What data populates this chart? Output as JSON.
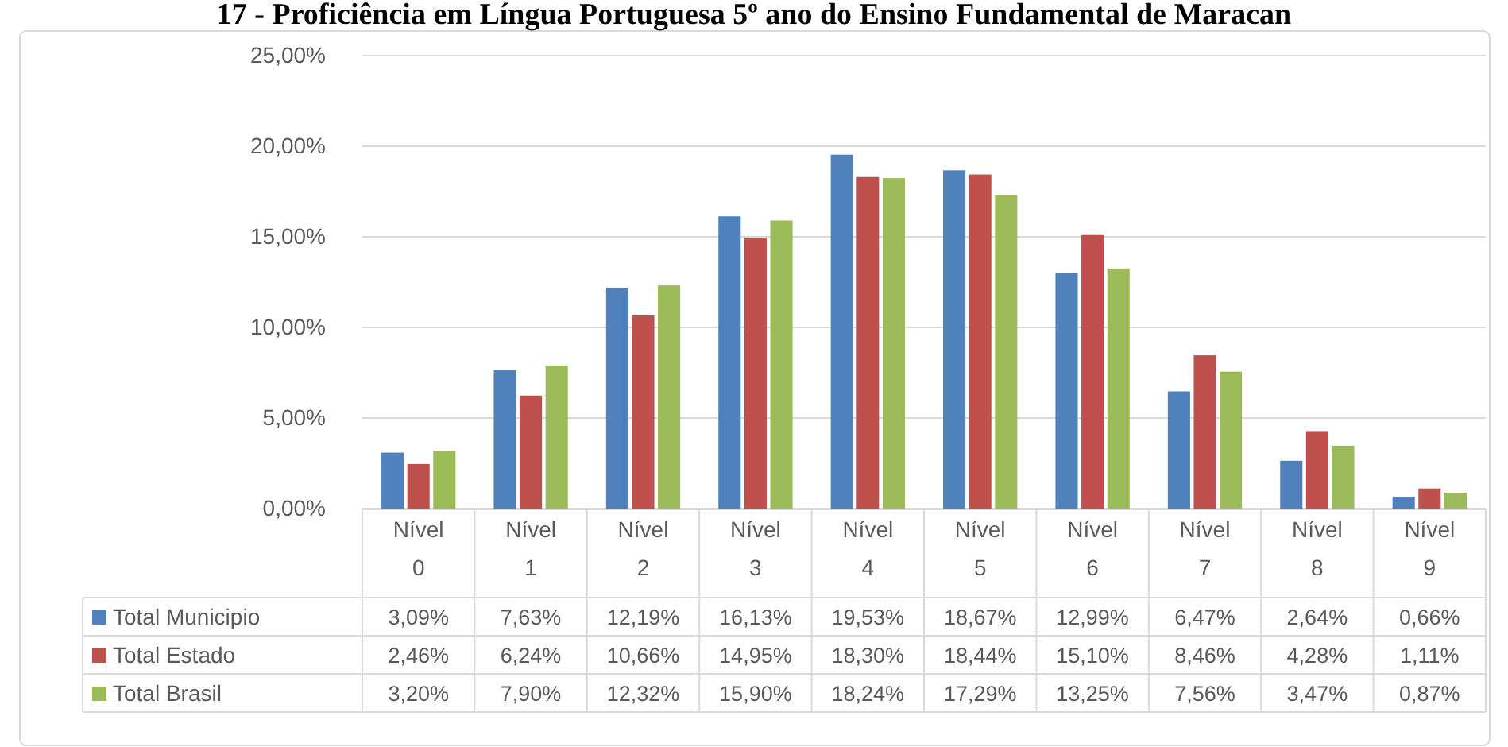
{
  "chart_data": {
    "type": "bar",
    "title": "17 - Proficiência em Língua Portuguesa 5º ano do Ensino Fundamental de Maracan",
    "categories": [
      "Nível 0",
      "Nível 1",
      "Nível 2",
      "Nível 3",
      "Nível 4",
      "Nível 5",
      "Nível 6",
      "Nível 7",
      "Nível 8",
      "Nível 9"
    ],
    "series": [
      {
        "name": "Total Municipio",
        "color": "#4f81bd",
        "values": [
          3.09,
          7.63,
          12.19,
          16.13,
          19.53,
          18.67,
          12.99,
          6.47,
          2.64,
          0.66
        ],
        "value_labels": [
          "3,09%",
          "7,63%",
          "12,19%",
          "16,13%",
          "19,53%",
          "18,67%",
          "12,99%",
          "6,47%",
          "2,64%",
          "0,66%"
        ]
      },
      {
        "name": "Total Estado",
        "color": "#c0504d",
        "values": [
          2.46,
          6.24,
          10.66,
          14.95,
          18.3,
          18.44,
          15.1,
          8.46,
          4.28,
          1.11
        ],
        "value_labels": [
          "2,46%",
          "6,24%",
          "10,66%",
          "14,95%",
          "18,30%",
          "18,44%",
          "15,10%",
          "8,46%",
          "4,28%",
          "1,11%"
        ]
      },
      {
        "name": "Total Brasil",
        "color": "#9bbb59",
        "values": [
          3.2,
          7.9,
          12.32,
          15.9,
          18.24,
          17.29,
          13.25,
          7.56,
          3.47,
          0.87
        ],
        "value_labels": [
          "3,20%",
          "7,90%",
          "12,32%",
          "15,90%",
          "18,24%",
          "17,29%",
          "13,25%",
          "7,56%",
          "3,47%",
          "0,87%"
        ]
      }
    ],
    "ylim": [
      0,
      25
    ],
    "yticks": [
      {
        "value": 0,
        "label": "0,00%"
      },
      {
        "value": 5,
        "label": "5,00%"
      },
      {
        "value": 10,
        "label": "10,00%"
      },
      {
        "value": 15,
        "label": "15,00%"
      },
      {
        "value": 20,
        "label": "20,00%"
      },
      {
        "value": 25,
        "label": "25,00%"
      }
    ],
    "grid": "y",
    "legend": "bottom"
  }
}
